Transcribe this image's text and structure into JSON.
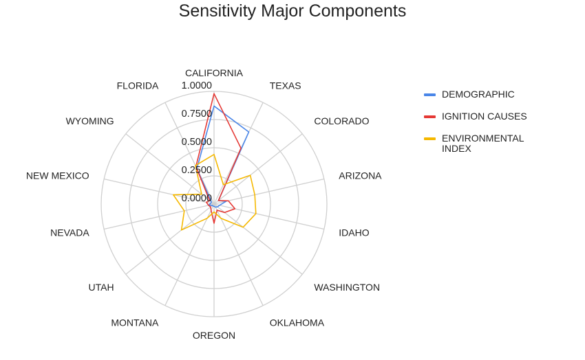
{
  "chart_data": {
    "type": "radar",
    "title": "Sensitivity Major Components",
    "categories": [
      "CALIFORNIA",
      "TEXAS",
      "COLORADO",
      "ARIZONA",
      "IDAHO",
      "WASHINGTON",
      "OKLAHOMA",
      "OREGON",
      "MONTANA",
      "UTAH",
      "NEVADA",
      "NEW MEXICO",
      "WYOMING",
      "FLORIDA"
    ],
    "ticks": [
      "0.0000",
      "0.2500",
      "0.5000",
      "0.7500",
      "1.0000"
    ],
    "rlim": [
      0,
      1
    ],
    "grid": true,
    "legend_position": "right",
    "series": [
      {
        "name": "DEMOGRAPHIC",
        "color": "#4a86e8",
        "values": [
          0.87,
          0.71,
          0.05,
          0.11,
          0.05,
          0.04,
          0.03,
          0.02,
          0.02,
          0.02,
          0.05,
          0.03,
          0.03,
          0.35
        ]
      },
      {
        "name": "IGNITION CAUSES",
        "color": "#e53935",
        "values": [
          0.98,
          0.55,
          0.05,
          0.13,
          0.19,
          0.12,
          0.06,
          0.17,
          0.06,
          0.04,
          0.05,
          0.07,
          0.05,
          0.37
        ]
      },
      {
        "name": "ENVIRONMENTAL INDEX",
        "color": "#f5b800",
        "values": [
          0.44,
          0.19,
          0.41,
          0.37,
          0.38,
          0.33,
          0.14,
          0.07,
          0.14,
          0.37,
          0.27,
          0.37,
          0.14,
          0.38
        ]
      }
    ]
  }
}
